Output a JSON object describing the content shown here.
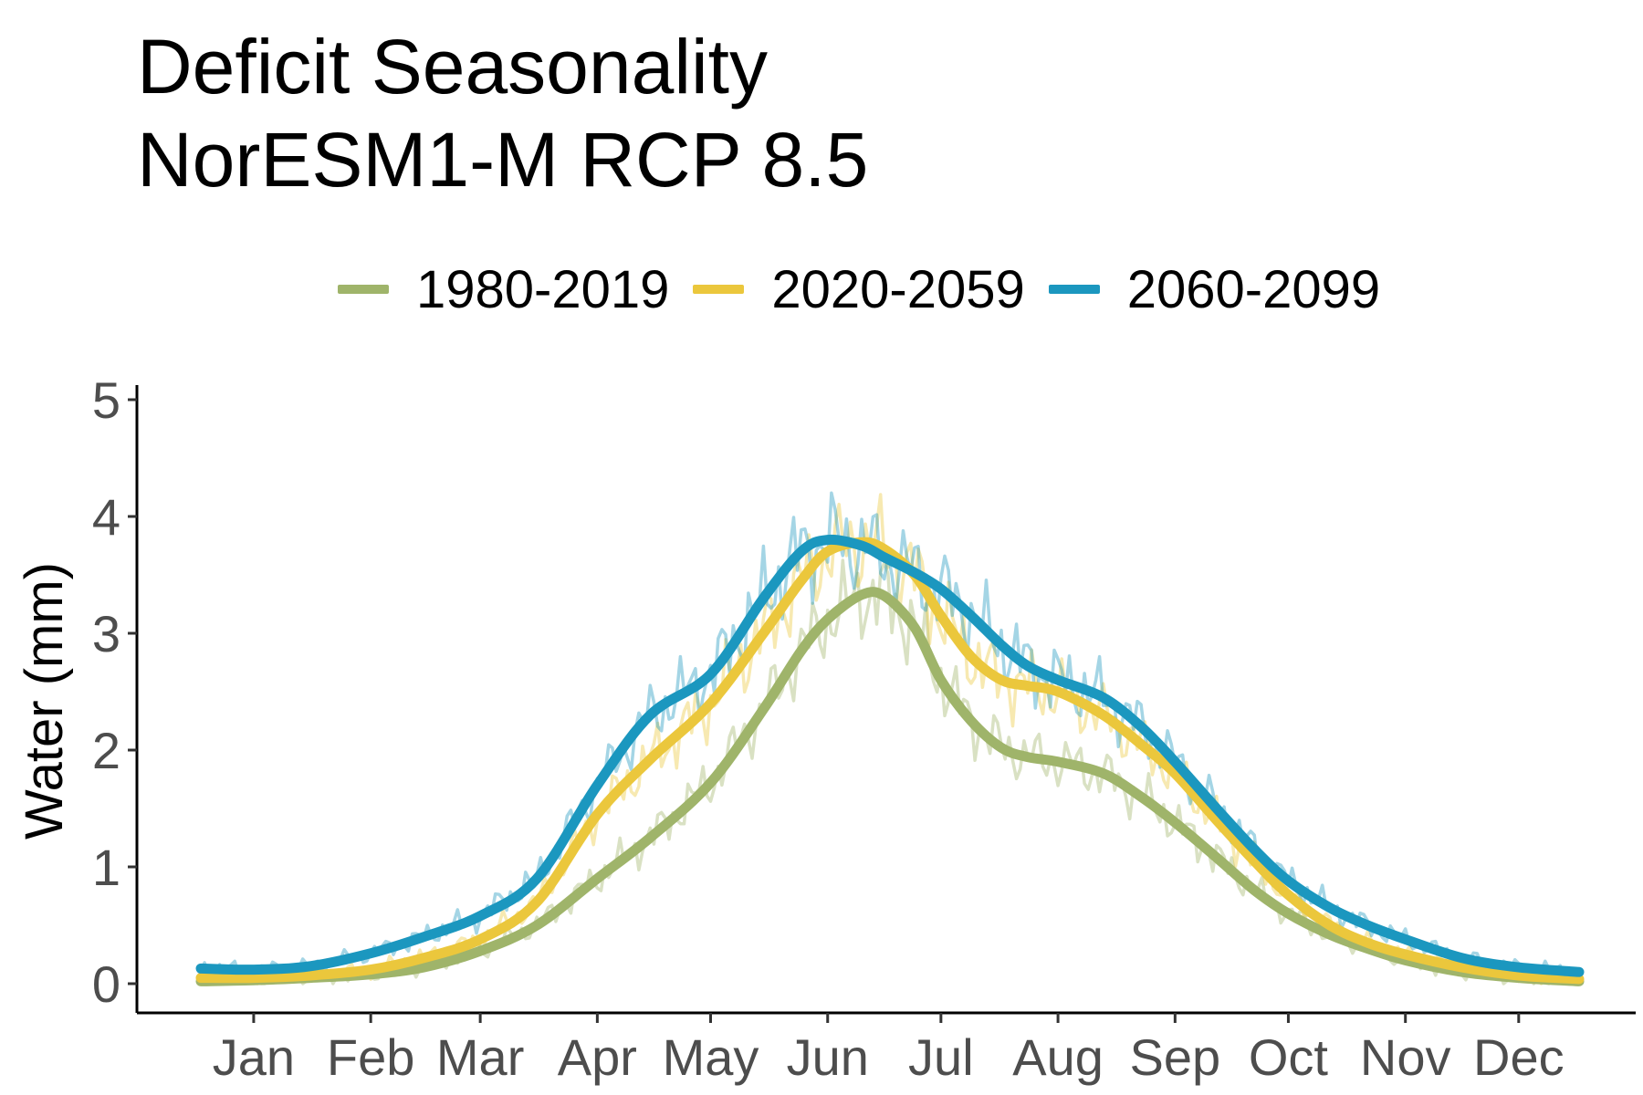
{
  "title_lines": [
    "Deficit Seasonality",
    "NorESM1-M RCP 8.5"
  ],
  "chart_data": {
    "type": "line",
    "title": "Deficit Seasonality NorESM1-M RCP 8.5",
    "xlabel": "",
    "ylabel": "Water (mm)",
    "x_unit": "day of year",
    "xlim": [
      1,
      366
    ],
    "ylim": [
      0,
      5
    ],
    "y_ticks": [
      0,
      1,
      2,
      3,
      4,
      5
    ],
    "x_ticks": [
      {
        "label": "Jan",
        "day": 15
      },
      {
        "label": "Feb",
        "day": 46
      },
      {
        "label": "Mar",
        "day": 75
      },
      {
        "label": "Apr",
        "day": 106
      },
      {
        "label": "May",
        "day": 136
      },
      {
        "label": "Jun",
        "day": 167
      },
      {
        "label": "Jul",
        "day": 197
      },
      {
        "label": "Aug",
        "day": 228
      },
      {
        "label": "Sep",
        "day": 259
      },
      {
        "label": "Oct",
        "day": 289
      },
      {
        "label": "Nov",
        "day": 320
      },
      {
        "label": "Dec",
        "day": 350
      }
    ],
    "grid": false,
    "legend_position": "top",
    "series": [
      {
        "name": "1980-2019",
        "color": "#9fb46a",
        "x": [
          1,
          15,
          30,
          46,
          60,
          75,
          90,
          106,
          120,
          136,
          150,
          160,
          167,
          176,
          182,
          190,
          197,
          205,
          213,
          220,
          228,
          240,
          250,
          259,
          270,
          280,
          289,
          300,
          310,
          320,
          335,
          350,
          366
        ],
        "values": [
          0.02,
          0.03,
          0.05,
          0.08,
          0.14,
          0.28,
          0.5,
          0.9,
          1.25,
          1.72,
          2.35,
          2.85,
          3.12,
          3.33,
          3.32,
          3.05,
          2.6,
          2.25,
          2.02,
          1.94,
          1.9,
          1.8,
          1.6,
          1.38,
          1.08,
          0.8,
          0.6,
          0.42,
          0.3,
          0.2,
          0.1,
          0.05,
          0.02
        ]
      },
      {
        "name": "2020-2059",
        "color": "#ebc73c",
        "x": [
          1,
          15,
          30,
          46,
          60,
          75,
          90,
          106,
          120,
          136,
          150,
          160,
          167,
          176,
          182,
          190,
          197,
          205,
          213,
          220,
          228,
          240,
          250,
          259,
          270,
          280,
          289,
          300,
          310,
          320,
          335,
          350,
          366
        ],
        "values": [
          0.05,
          0.05,
          0.07,
          0.12,
          0.22,
          0.38,
          0.7,
          1.45,
          1.92,
          2.4,
          3.0,
          3.45,
          3.7,
          3.78,
          3.72,
          3.5,
          3.15,
          2.8,
          2.6,
          2.55,
          2.5,
          2.3,
          2.05,
          1.8,
          1.4,
          1.05,
          0.76,
          0.5,
          0.35,
          0.25,
          0.14,
          0.07,
          0.04
        ]
      },
      {
        "name": "2060-2099",
        "color": "#1b97bf",
        "x": [
          1,
          15,
          30,
          46,
          60,
          75,
          90,
          106,
          120,
          136,
          150,
          160,
          167,
          176,
          182,
          190,
          197,
          205,
          213,
          220,
          228,
          240,
          250,
          259,
          270,
          280,
          289,
          300,
          310,
          320,
          335,
          350,
          366
        ],
        "values": [
          0.13,
          0.12,
          0.15,
          0.26,
          0.4,
          0.58,
          0.9,
          1.7,
          2.3,
          2.65,
          3.3,
          3.7,
          3.8,
          3.75,
          3.65,
          3.52,
          3.38,
          3.15,
          2.9,
          2.72,
          2.6,
          2.45,
          2.2,
          1.9,
          1.5,
          1.15,
          0.88,
          0.65,
          0.5,
          0.38,
          0.22,
          0.14,
          0.1
        ]
      }
    ]
  }
}
